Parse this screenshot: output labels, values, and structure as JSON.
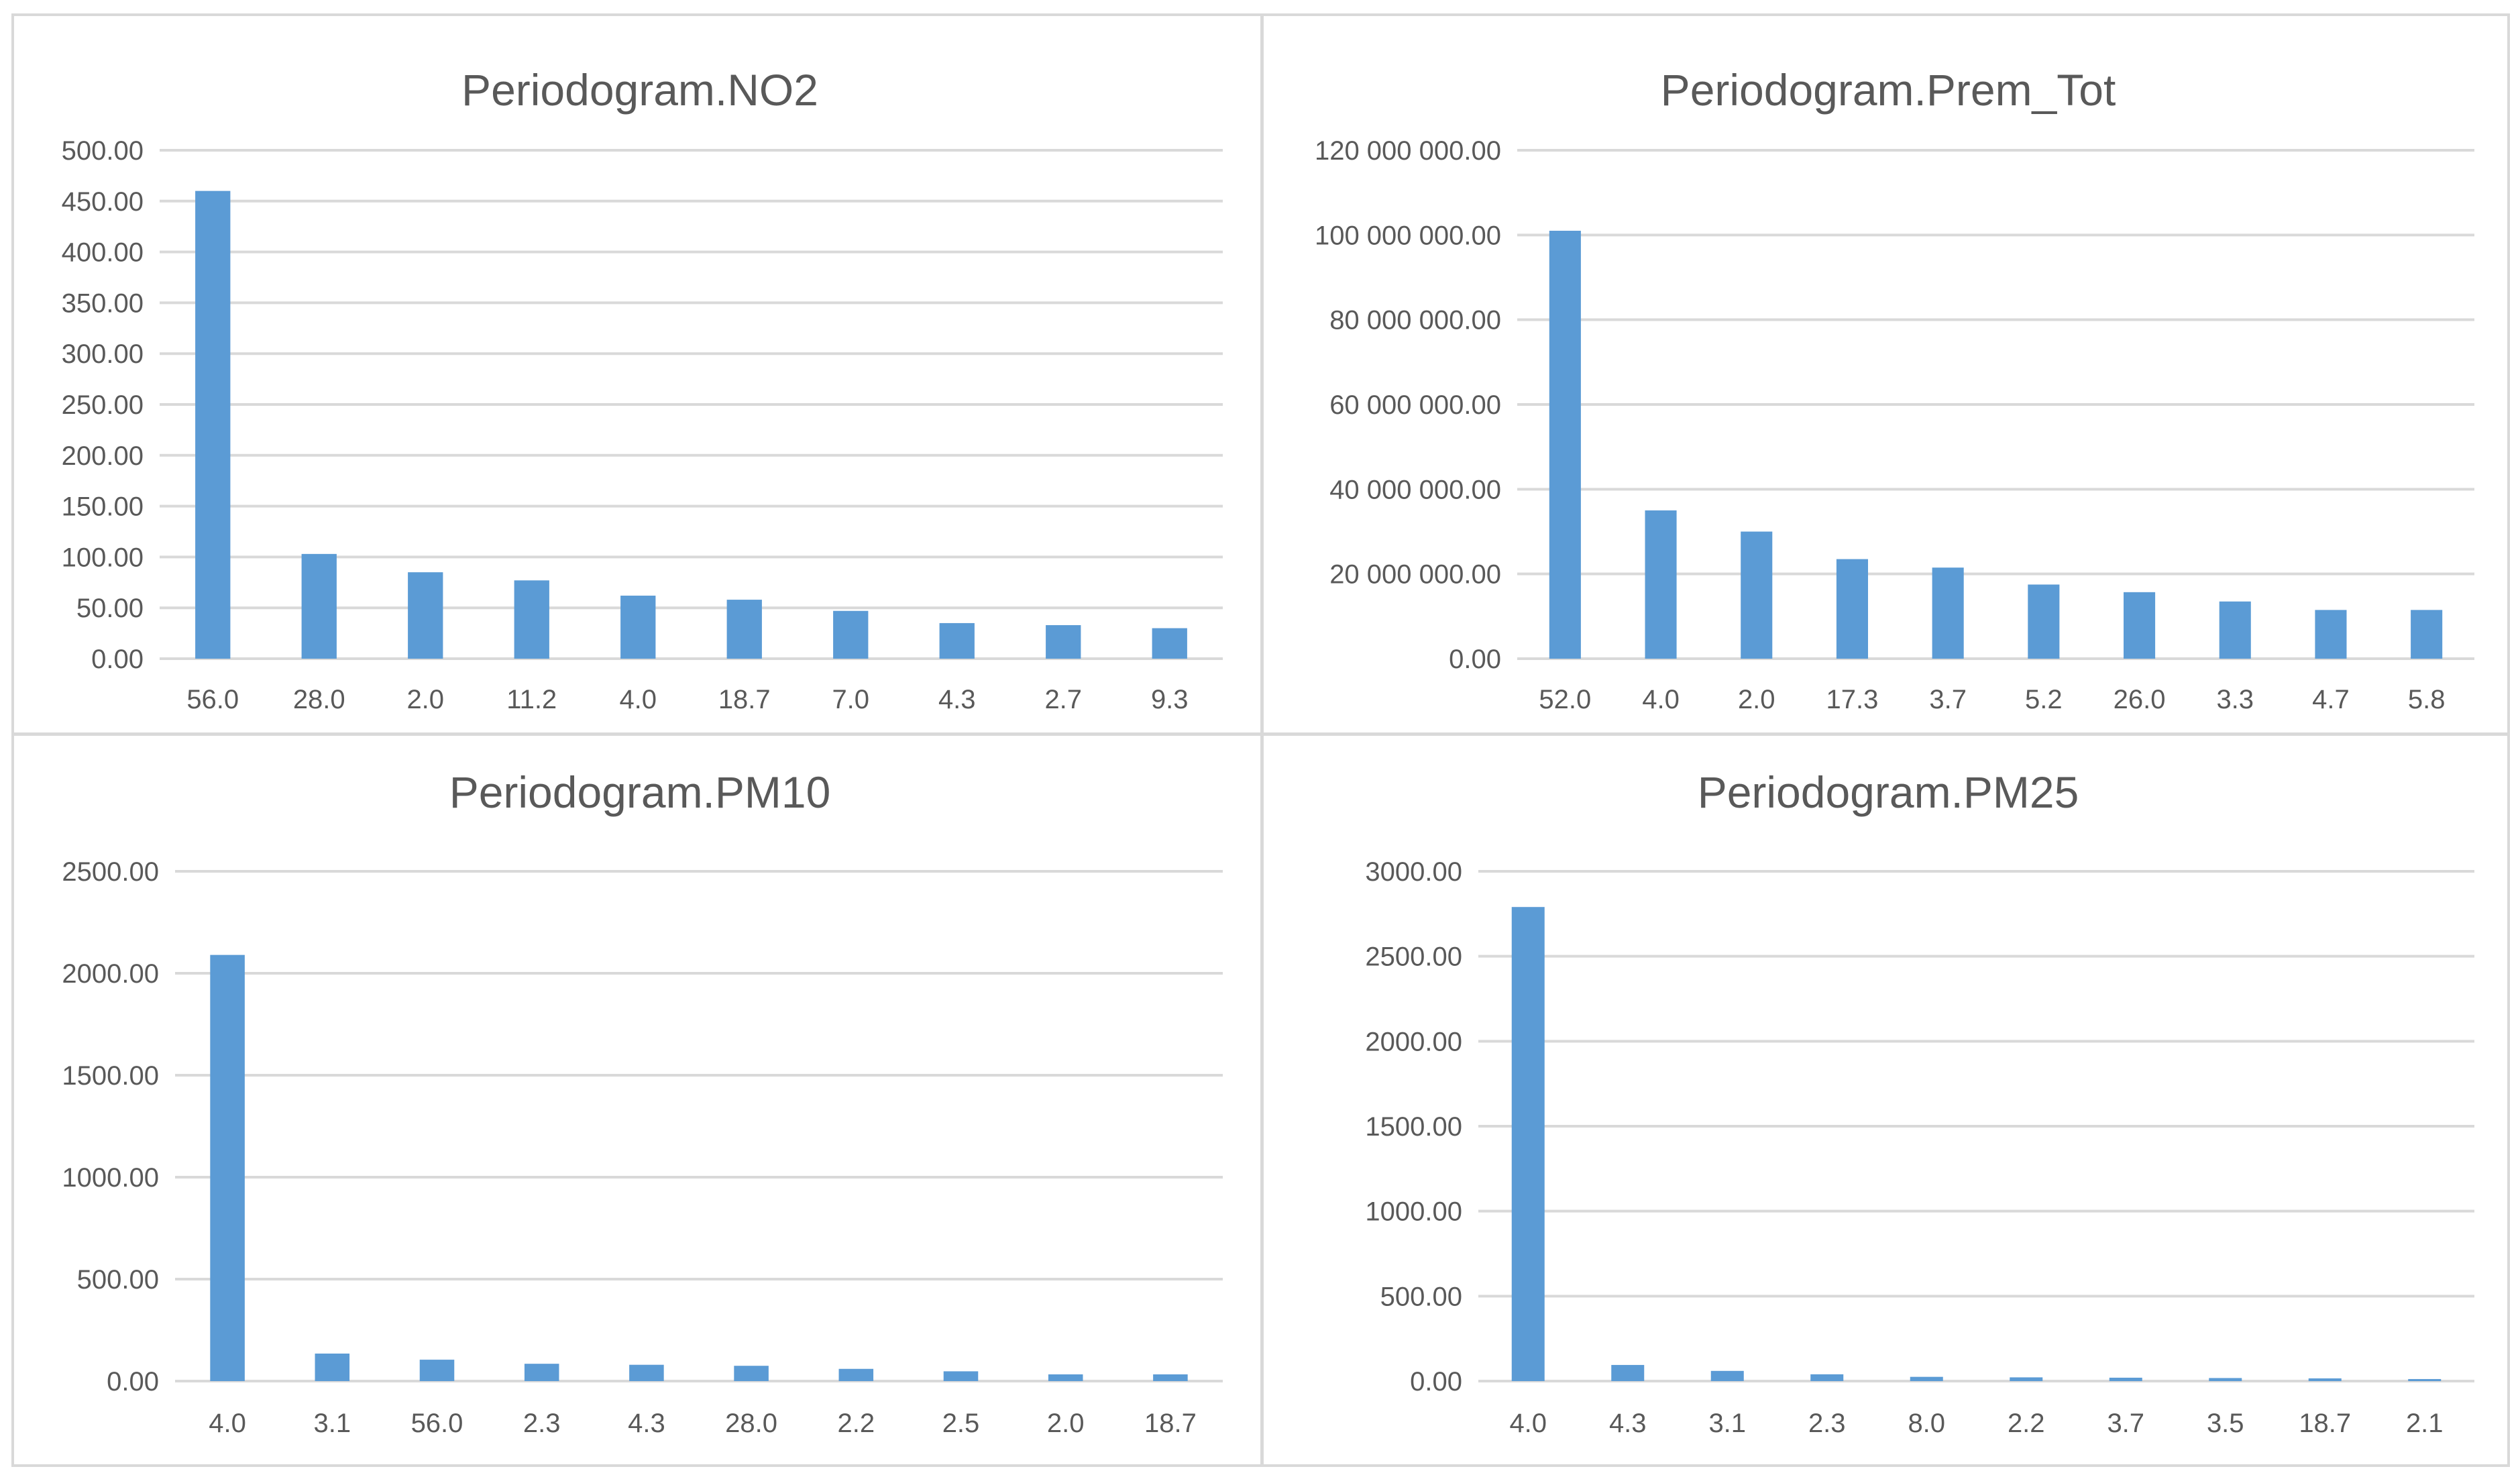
{
  "colors": {
    "bar": "#5b9bd5",
    "grid": "#d9d9d9",
    "text": "#595959",
    "border": "#d9d9d9"
  },
  "chart_data": [
    {
      "type": "bar",
      "title": "Periodogram.NO2",
      "categories": [
        "56.0",
        "28.0",
        "2.0",
        "11.2",
        "4.0",
        "18.7",
        "7.0",
        "4.3",
        "2.7",
        "9.3"
      ],
      "values": [
        460,
        103,
        85,
        77,
        62,
        58,
        47,
        35,
        33,
        30
      ],
      "yticks": [
        "0.00",
        "50.00",
        "100.00",
        "150.00",
        "200.00",
        "250.00",
        "300.00",
        "350.00",
        "400.00",
        "450.00",
        "500.00"
      ],
      "ylim": [
        0,
        500
      ],
      "xlabel": "",
      "ylabel": "",
      "grid": true,
      "legend": "none"
    },
    {
      "type": "bar",
      "title": "Periodogram.Prem_Tot",
      "categories": [
        "52.0",
        "4.0",
        "2.0",
        "17.3",
        "3.7",
        "5.2",
        "26.0",
        "3.3",
        "4.7",
        "5.8"
      ],
      "values": [
        101000000,
        35000000,
        30000000,
        23500000,
        21500000,
        17500000,
        15700000,
        13500000,
        11500000,
        11500000
      ],
      "yticks": [
        "0.00",
        "20 000 000.00",
        "40 000 000.00",
        "60 000 000.00",
        "80 000 000.00",
        "100 000 000.00",
        "120 000 000.00"
      ],
      "ylim": [
        0,
        120000000
      ],
      "xlabel": "",
      "ylabel": "",
      "grid": true,
      "legend": "none"
    },
    {
      "type": "bar",
      "title": "Periodogram.PM10",
      "categories": [
        "4.0",
        "3.1",
        "56.0",
        "2.3",
        "4.3",
        "28.0",
        "2.2",
        "2.5",
        "2.0",
        "18.7"
      ],
      "values": [
        2090,
        135,
        105,
        85,
        80,
        75,
        60,
        48,
        33,
        33
      ],
      "yticks": [
        "0.00",
        "500.00",
        "1000.00",
        "1500.00",
        "2000.00",
        "2500.00"
      ],
      "ylim": [
        0,
        2500
      ],
      "xlabel": "",
      "ylabel": "",
      "grid": true,
      "legend": "none"
    },
    {
      "type": "bar",
      "title": "Periodogram.PM25",
      "categories": [
        "4.0",
        "4.3",
        "3.1",
        "2.3",
        "8.0",
        "2.2",
        "3.7",
        "3.5",
        "18.7",
        "2.1"
      ],
      "values": [
        2790,
        95,
        60,
        40,
        25,
        22,
        20,
        18,
        16,
        12
      ],
      "yticks": [
        "0.00",
        "500.00",
        "1000.00",
        "1500.00",
        "2000.00",
        "2500.00",
        "3000.00"
      ],
      "ylim": [
        0,
        3000
      ],
      "xlabel": "",
      "ylabel": "",
      "grid": true,
      "legend": "none"
    }
  ]
}
